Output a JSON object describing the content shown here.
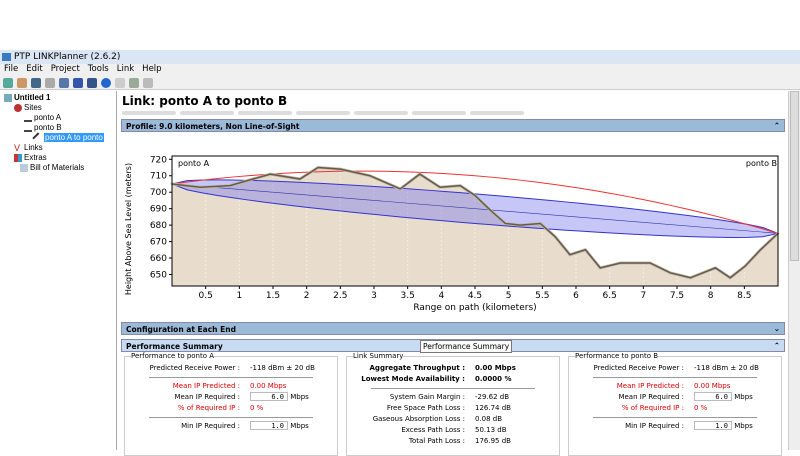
{
  "window": {
    "title": "PTP LINKPlanner (2.6.2)"
  },
  "menu": [
    "File",
    "Edit",
    "Project",
    "Tools",
    "Link",
    "Help"
  ],
  "tree": {
    "root": "Untitled 1",
    "sites": "Sites",
    "site_a": "ponto A",
    "site_b": "ponto B",
    "link": "ponto A to ponto",
    "links": "Links",
    "extras": "Extras",
    "bom": "Bill of Materials"
  },
  "link_title": "Link: ponto A to ponto B",
  "profile": {
    "header": "Profile: 9.0 kilometers, Non Line-of-Sight",
    "left_label": "ponto A",
    "right_label": "ponto B"
  },
  "config_header": "Configuration at Each End",
  "perf_header": "Performance Summary",
  "tooltip": "Performance Summary",
  "perf_a": {
    "legend": "Performance to ponto A",
    "rows": [
      [
        "Predicted Receive Power :",
        "-118 dBm ± 20 dB"
      ],
      [
        "Mean IP Predicted :",
        "0.00 Mbps"
      ],
      [
        "Mean IP Required :",
        "6.0",
        "Mbps"
      ],
      [
        "% of Required IP :",
        "0 %"
      ],
      [
        "Min IP Required :",
        "1.0",
        "Mbps"
      ]
    ]
  },
  "perf_b": {
    "legend": "Performance to ponto B",
    "rows": [
      [
        "Predicted Receive Power :",
        "-118 dBm ± 20 dB"
      ],
      [
        "Mean IP Predicted :",
        "0.00 Mbps"
      ],
      [
        "Mean IP Required :",
        "6.0",
        "Mbps"
      ],
      [
        "% of Required IP :",
        "0 %"
      ],
      [
        "Min IP Required :",
        "1.0",
        "Mbps"
      ]
    ]
  },
  "link_summary": {
    "legend": "Link Summary",
    "rows": [
      [
        "Aggregate Throughput :",
        "0.00 Mbps"
      ],
      [
        "Lowest Mode Availability :",
        "0.0000 %"
      ],
      [
        "System Gain Margin :",
        "-29.62 dB"
      ],
      [
        "Free Space Path Loss :",
        "126.74 dB"
      ],
      [
        "Gaseous Absorption Loss :",
        "0.08 dB"
      ],
      [
        "Excess Path Loss :",
        "50.13 dB"
      ],
      [
        "Total Path Loss :",
        "176.95 dB"
      ]
    ]
  },
  "chart_data": {
    "type": "line",
    "xlabel": "Range on path (kilometers)",
    "ylabel": "Height Above Sea Level (meters)",
    "xlim": [
      0,
      9
    ],
    "ylim": [
      643,
      722
    ],
    "xticks": [
      0.5,
      1,
      1.5,
      2,
      2.5,
      3,
      3.5,
      4,
      4.5,
      5,
      5.5,
      6,
      6.5,
      7,
      7.5,
      8,
      8.5
    ],
    "yticks": [
      650,
      660,
      670,
      680,
      690,
      700,
      710,
      720
    ],
    "terrain": {
      "x": [
        0,
        0.42,
        0.86,
        1.46,
        1.9,
        2.17,
        2.5,
        2.94,
        3.39,
        3.68,
        3.98,
        4.28,
        4.5,
        4.73,
        4.95,
        5.17,
        5.47,
        5.69,
        5.91,
        6.14,
        6.36,
        6.66,
        7.1,
        7.4,
        7.7,
        8.07,
        8.29,
        8.51,
        8.74,
        9
      ],
      "y": [
        705,
        703,
        704,
        711,
        708,
        715,
        714,
        710,
        702,
        711,
        703,
        704,
        698,
        689,
        681,
        680,
        681,
        673,
        662,
        665,
        654,
        657,
        657,
        651,
        648,
        654,
        648,
        655,
        665,
        675
      ]
    },
    "los_start": 705,
    "los_end": 675,
    "terrain_color": "#6b5a3c",
    "fill_color": "#e8dccd",
    "fresnel_color": "#3333cc",
    "curve_color": "#ee3333"
  }
}
